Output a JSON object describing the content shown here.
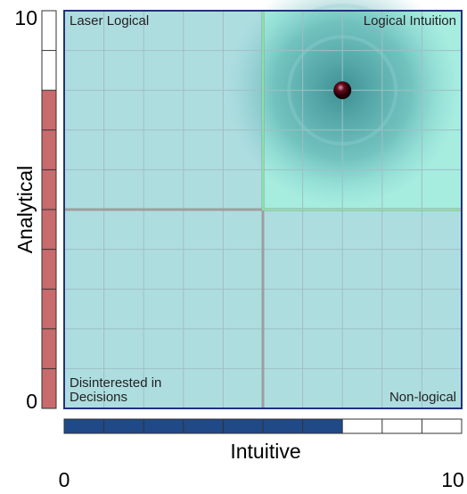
{
  "chart_data": {
    "type": "scatter",
    "xlabel": "Intuitive",
    "ylabel": "Analytical",
    "x": [
      7
    ],
    "values": [
      8
    ],
    "color": "#4a0614",
    "xlim": [
      0,
      10
    ],
    "ylim": [
      0,
      10
    ],
    "xticks": [
      0,
      10
    ],
    "yticks": [
      0,
      10
    ],
    "grid": true,
    "quadrants": {
      "top_left": "Laser Logical",
      "top_right": "Logical Intuition",
      "bottom_left": "Disinterested in Decisions",
      "bottom_right": "Non-logical"
    },
    "highlight_quadrant": "top_right",
    "x_gauge_color": "#1f4a87",
    "y_gauge_color": "#c96a6d"
  }
}
